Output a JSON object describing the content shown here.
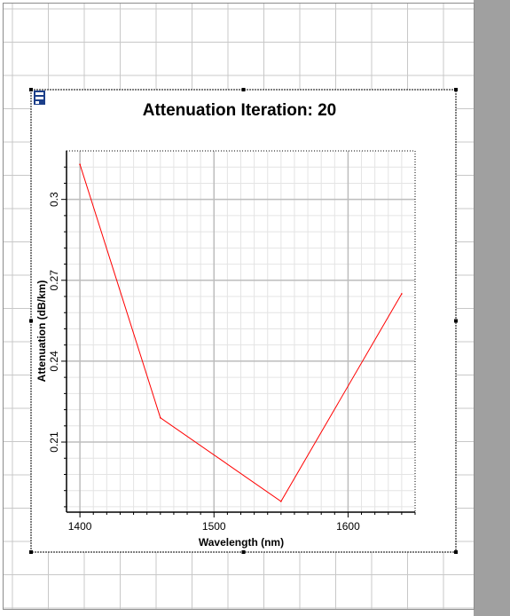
{
  "icons": {
    "panel_icon": "panel-icon"
  },
  "colors": {
    "series": "#ff0000",
    "workspace_grid": "#c8c8c8",
    "workspace_bg": "#ffffff",
    "side_bar": "#a0a0a0",
    "plot_grid_major": "#bdbdbd",
    "plot_grid_minor": "#e4e4e4"
  },
  "chart_data": {
    "type": "line",
    "title": "Attenuation Iteration: 20",
    "xlabel": "Wavelength (nm)",
    "ylabel": "Attenuation (dB/km)",
    "xlim": [
      1390,
      1650
    ],
    "ylim": [
      0.184,
      0.318
    ],
    "x_ticks": [
      1400,
      1500,
      1600
    ],
    "x_tick_labels": [
      "1400",
      "1500",
      "1600"
    ],
    "y_ticks": [
      0.21,
      0.24,
      0.27,
      0.3
    ],
    "y_tick_labels": [
      "0.21",
      "0.24",
      "0.27",
      "0.3"
    ],
    "grid": true,
    "series": [
      {
        "x": [
          1400,
          1460,
          1550,
          1640
        ],
        "y": [
          0.313,
          0.219,
          0.188,
          0.265
        ]
      }
    ]
  }
}
